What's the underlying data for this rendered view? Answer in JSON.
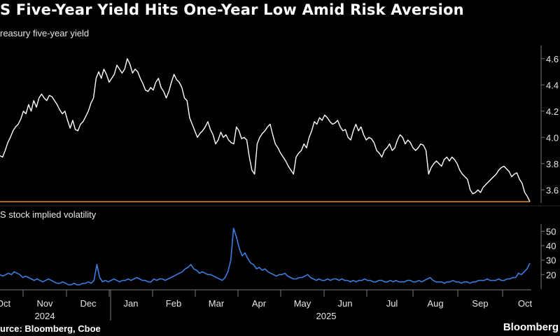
{
  "title": "S Five-Year Yield Hits One-Year Low Amid Risk Aversion",
  "source": "urce: Bloomberg, Cboe",
  "brand": "Bloomberg",
  "colors": {
    "yield_line": "#ffffff",
    "low_line": "#f08c1a",
    "vol_line": "#3e7de0",
    "axis": "#777777",
    "background": "#000000"
  },
  "chart_data": [
    {
      "type": "line",
      "label": "reasury five-year yield",
      "y_ticks": [
        "4.6",
        "4.4",
        "4.2",
        "4.0",
        "3.8",
        "3.6"
      ],
      "ylim": [
        3.5,
        4.7
      ],
      "reference_line": {
        "value": 3.51,
        "label": ""
      },
      "series": [
        {
          "values": [
            3.86,
            3.85,
            3.9,
            3.96,
            4.0,
            4.05,
            4.08,
            4.1,
            4.14,
            4.2,
            4.18,
            4.25,
            4.2,
            4.28,
            4.23,
            4.3,
            4.33,
            4.3,
            4.28,
            4.32,
            4.31,
            4.28,
            4.25,
            4.21,
            4.18,
            4.2,
            4.13,
            4.07,
            4.13,
            4.06,
            4.05,
            4.1,
            4.12,
            4.16,
            4.2,
            4.26,
            4.3,
            4.45,
            4.5,
            4.45,
            4.52,
            4.48,
            4.42,
            4.45,
            4.48,
            4.55,
            4.52,
            4.49,
            4.52,
            4.6,
            4.56,
            4.49,
            4.52,
            4.5,
            4.45,
            4.41,
            4.36,
            4.35,
            4.38,
            4.36,
            4.42,
            4.45,
            4.38,
            4.35,
            4.3,
            4.35,
            4.42,
            4.48,
            4.44,
            4.42,
            4.38,
            4.3,
            4.28,
            4.15,
            4.1,
            4.05,
            4.0,
            4.03,
            4.05,
            4.08,
            4.12,
            4.06,
            4.02,
            3.95,
            3.98,
            4.04,
            4.0,
            4.02,
            3.98,
            3.96,
            3.95,
            4.08,
            4.05,
            3.99,
            4.0,
            3.98,
            3.85,
            3.75,
            3.72,
            3.95,
            4.0,
            4.03,
            4.05,
            4.08,
            4.1,
            4.02,
            3.95,
            3.92,
            3.88,
            3.85,
            3.82,
            3.78,
            3.75,
            3.72,
            3.85,
            3.88,
            3.9,
            3.95,
            3.92,
            4.0,
            4.05,
            4.12,
            4.1,
            4.15,
            4.13,
            4.17,
            4.15,
            4.12,
            4.1,
            4.11,
            4.13,
            4.08,
            4.05,
            4.06,
            4.0,
            3.98,
            4.05,
            4.1,
            4.05,
            4.08,
            4.02,
            3.98,
            4.0,
            3.99,
            3.96,
            3.9,
            3.88,
            3.85,
            3.9,
            3.92,
            3.95,
            3.9,
            3.92,
            3.98,
            4.02,
            4.0,
            3.95,
            3.98,
            3.96,
            3.92,
            3.9,
            3.92,
            3.95,
            3.94,
            3.9,
            3.72,
            3.77,
            3.8,
            3.82,
            3.8,
            3.78,
            3.83,
            3.85,
            3.82,
            3.85,
            3.83,
            3.8,
            3.75,
            3.72,
            3.7,
            3.68,
            3.6,
            3.57,
            3.58,
            3.6,
            3.58,
            3.62,
            3.64,
            3.66,
            3.68,
            3.7,
            3.72,
            3.75,
            3.77,
            3.78,
            3.76,
            3.74,
            3.7,
            3.72,
            3.73,
            3.68,
            3.65,
            3.58,
            3.55,
            3.51
          ]
        }
      ]
    },
    {
      "type": "line",
      "label": "S stock implied volatility",
      "y_ticks": [
        "50",
        "40",
        "30",
        "20"
      ],
      "ylim": [
        10,
        55
      ],
      "x_tick_labels": [
        "Oct",
        "Nov",
        "Dec",
        "Jan",
        "Feb",
        "Mar",
        "Apr",
        "May",
        "Jun",
        "Jul",
        "Aug",
        "Sep",
        "Oct"
      ],
      "x_year_labels": [
        "2024",
        "2025"
      ],
      "series": [
        {
          "values": [
            20,
            19,
            20,
            21,
            20,
            22,
            21,
            20,
            18,
            19,
            18,
            17,
            16,
            17,
            16,
            15,
            16,
            17,
            16,
            15,
            14,
            14,
            15,
            14,
            13,
            13,
            14,
            13,
            13,
            14,
            14,
            15,
            14,
            16,
            27,
            18,
            15,
            16,
            15,
            16,
            17,
            16,
            15,
            16,
            16,
            17,
            16,
            17,
            18,
            17,
            16,
            16,
            15,
            15,
            17,
            16,
            17,
            17,
            16,
            17,
            18,
            19,
            20,
            21,
            22,
            24,
            25,
            27,
            24,
            23,
            21,
            22,
            21,
            20,
            20,
            19,
            18,
            17,
            16,
            18,
            22,
            30,
            52,
            46,
            38,
            33,
            35,
            31,
            28,
            27,
            24,
            25,
            23,
            24,
            22,
            21,
            20,
            19,
            20,
            20,
            21,
            19,
            18,
            17,
            17,
            18,
            18,
            19,
            20,
            18,
            17,
            16,
            17,
            16,
            16,
            17,
            16,
            17,
            17,
            16,
            17,
            16,
            16,
            15,
            16,
            15,
            16,
            16,
            17,
            16,
            16,
            15,
            15,
            16,
            16,
            15,
            15,
            16,
            15,
            16,
            15,
            15,
            15,
            16,
            16,
            15,
            15,
            16,
            15,
            16,
            17,
            18,
            16,
            15,
            15,
            15,
            14,
            15,
            15,
            16,
            15,
            15,
            14,
            15,
            15,
            14,
            15,
            15,
            16,
            16,
            16,
            17,
            16,
            16,
            16,
            17,
            16,
            16,
            17,
            17,
            18,
            18,
            21,
            20,
            22,
            24,
            28
          ]
        }
      ]
    }
  ]
}
